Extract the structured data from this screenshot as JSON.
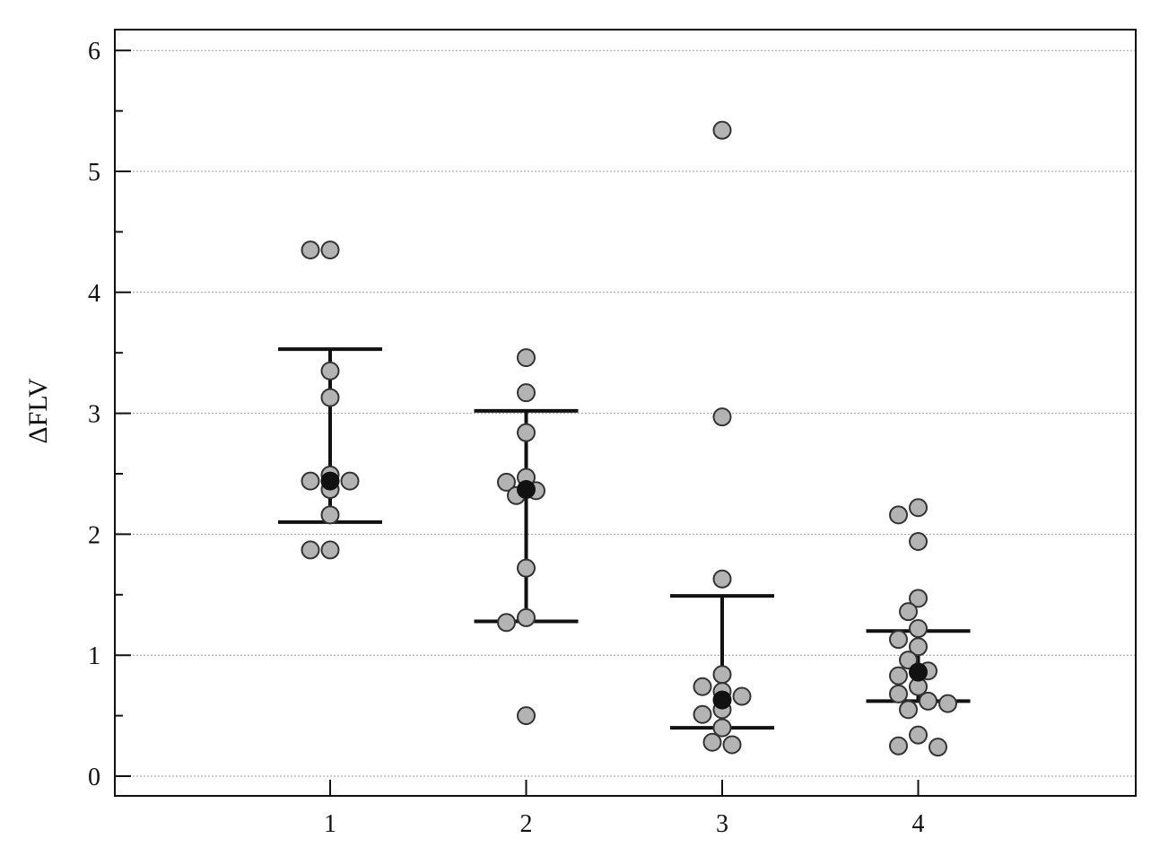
{
  "chart_data": {
    "type": "scatter",
    "title": "",
    "xlabel": "",
    "ylabel": "ΔFLV",
    "categories": [
      "1",
      "2",
      "3",
      "4"
    ],
    "ylim": [
      -0.17,
      6.2
    ],
    "yticks": [
      "0",
      "1",
      "2",
      "3",
      "4",
      "5",
      "6"
    ],
    "grid": true,
    "groups": [
      {
        "category": "1",
        "points": [
          4.35,
          4.35,
          3.35,
          3.13,
          2.49,
          2.44,
          2.44,
          2.37,
          2.16,
          1.87,
          1.87
        ],
        "center": 2.44,
        "upper": 3.53,
        "lower": 2.1
      },
      {
        "category": "2",
        "points": [
          3.46,
          3.17,
          2.84,
          2.47,
          2.43,
          2.36,
          2.32,
          1.72,
          1.31,
          1.27,
          0.5
        ],
        "center": 2.37,
        "upper": 3.02,
        "lower": 1.28
      },
      {
        "category": "3",
        "points": [
          5.34,
          2.97,
          1.63,
          0.84,
          0.74,
          0.7,
          0.66,
          0.55,
          0.51,
          0.4,
          0.28,
          0.26
        ],
        "center": 0.63,
        "upper": 1.49,
        "lower": 0.4
      },
      {
        "category": "4",
        "points": [
          2.22,
          2.16,
          1.94,
          1.47,
          1.36,
          1.22,
          1.13,
          1.07,
          0.96,
          0.87,
          0.83,
          0.74,
          0.68,
          0.62,
          0.6,
          0.55,
          0.34,
          0.25,
          0.24
        ],
        "center": 0.86,
        "upper": 1.2,
        "lower": 0.62
      }
    ],
    "colors": {
      "points": "#b3b3b3",
      "center": "#111111",
      "error_bars": "#111111"
    }
  }
}
